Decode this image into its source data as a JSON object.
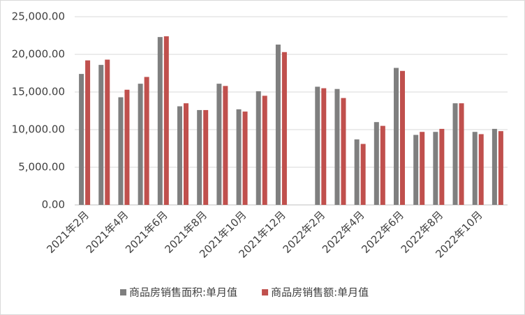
{
  "chart_data": {
    "type": "bar",
    "categories": [
      "2021年2月",
      null,
      "2021年4月",
      null,
      "2021年6月",
      null,
      "2021年8月",
      null,
      "2021年10月",
      null,
      "2021年12月",
      null,
      "2022年2月",
      null,
      "2022年4月",
      null,
      "2022年6月",
      null,
      "2022年8月",
      null,
      "2022年10月",
      null
    ],
    "series": [
      {
        "name": "商品房销售面积:单月值",
        "color": "#7f7f7f",
        "values": [
          17400,
          18600,
          14300,
          16100,
          22300,
          13100,
          12600,
          16100,
          12700,
          15100,
          21300,
          null,
          15700,
          15400,
          8700,
          11000,
          18200,
          9300,
          9700,
          13500,
          9700,
          10100
        ]
      },
      {
        "name": "商品房销售额:单月值",
        "color": "#c0504d",
        "values": [
          19200,
          19300,
          15300,
          17000,
          22400,
          13500,
          12600,
          15800,
          12400,
          14500,
          20300,
          null,
          15500,
          14200,
          8100,
          10500,
          17800,
          9700,
          10100,
          13500,
          9400,
          9800
        ]
      }
    ],
    "ylim": [
      0,
      25000
    ],
    "yticks": [
      {
        "value": 0,
        "label": "0.00"
      },
      {
        "value": 5000,
        "label": "5,000.00"
      },
      {
        "value": 10000,
        "label": "10,000.00"
      },
      {
        "value": 15000,
        "label": "15,000.00"
      },
      {
        "value": 20000,
        "label": "20,000.00"
      },
      {
        "value": 25000,
        "label": "25,000.00"
      }
    ],
    "grid": true,
    "legend": "bottom"
  }
}
